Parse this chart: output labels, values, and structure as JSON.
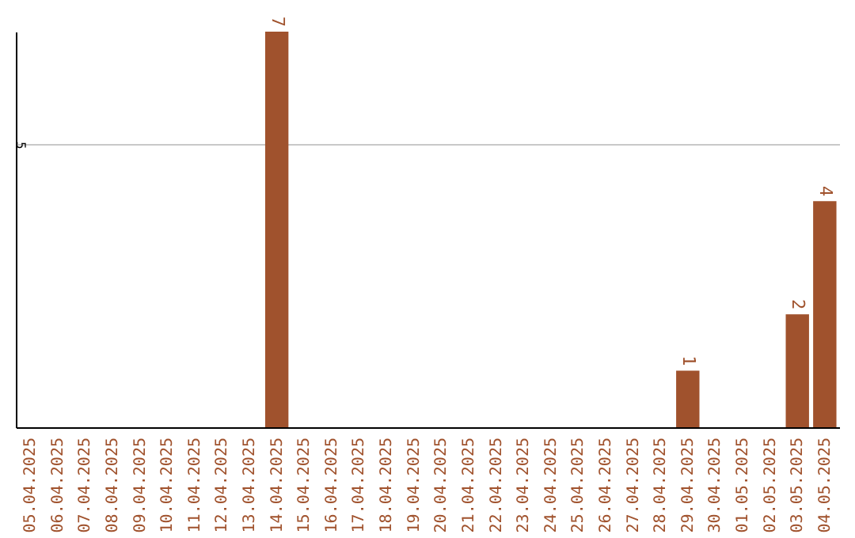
{
  "chart_data": {
    "type": "bar",
    "categories": [
      "05.04.2025",
      "06.04.2025",
      "07.04.2025",
      "08.04.2025",
      "09.04.2025",
      "10.04.2025",
      "11.04.2025",
      "12.04.2025",
      "13.04.2025",
      "14.04.2025",
      "15.04.2025",
      "16.04.2025",
      "17.04.2025",
      "18.04.2025",
      "19.04.2025",
      "20.04.2025",
      "21.04.2025",
      "22.04.2025",
      "23.04.2025",
      "24.04.2025",
      "25.04.2025",
      "26.04.2025",
      "27.04.2025",
      "28.04.2025",
      "29.04.2025",
      "30.04.2025",
      "01.05.2025",
      "02.05.2025",
      "03.05.2025",
      "04.05.2025"
    ],
    "values": [
      0,
      0,
      0,
      0,
      0,
      0,
      0,
      0,
      0,
      7,
      0,
      0,
      0,
      0,
      0,
      0,
      0,
      0,
      0,
      0,
      0,
      0,
      0,
      0,
      1,
      0,
      0,
      0,
      2,
      4
    ],
    "value_labels": [
      null,
      null,
      null,
      null,
      null,
      null,
      null,
      null,
      null,
      "7",
      null,
      null,
      null,
      null,
      null,
      null,
      null,
      null,
      null,
      null,
      null,
      null,
      null,
      null,
      "1",
      null,
      null,
      null,
      "2",
      "4"
    ],
    "color": "#a0522d",
    "ylim": [
      0,
      7
    ],
    "yticks": [
      5
    ],
    "grid": "y"
  }
}
